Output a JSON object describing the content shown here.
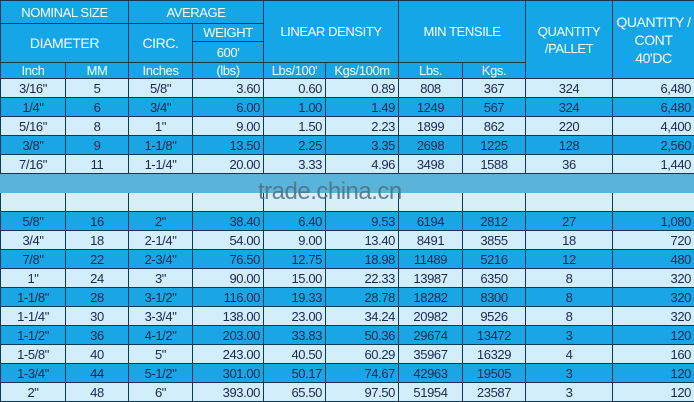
{
  "header": {
    "nominal_size": "NOMINAL SIZE",
    "average": "AVERAGE",
    "diameter": "DIAMETER",
    "circ": "CIRC.",
    "weight": "WEIGHT",
    "weight_len": "600'",
    "linear_density": "LINEAR DENSITY",
    "min_tensile": "MIN TENSILE",
    "qty_pallet": "QUANTITY /PALLET",
    "qty_cont": "QUANTITY / CONT 40'DC",
    "units": [
      "Inch",
      "MM",
      "Inches",
      "(lbs)",
      "Lbs/100'",
      "Kgs/100m",
      "Lbs.",
      "Kgs."
    ]
  },
  "rows_top": [
    [
      "3/16\"",
      "5",
      "5/8\"",
      "3.60",
      "0.60",
      "0.89",
      "808",
      "367",
      "324",
      "6,480"
    ],
    [
      "1/4\"",
      "6",
      "3/4\"",
      "6.00",
      "1.00",
      "1.49",
      "1249",
      "567",
      "324",
      "6,480"
    ],
    [
      "5/16\"",
      "8",
      "1\"",
      "9.00",
      "1.50",
      "2.23",
      "1899",
      "862",
      "220",
      "4,400"
    ],
    [
      "3/8\"",
      "9",
      "1-1/8\"",
      "13.50",
      "2.25",
      "3.35",
      "2698",
      "1225",
      "128",
      "2,560"
    ],
    [
      "7/16\"",
      "11",
      "1-1/4\"",
      "20.00",
      "3.33",
      "4.96",
      "3498",
      "1588",
      "36",
      "1,440"
    ]
  ],
  "rows_bottom": [
    [
      "5/8\"",
      "16",
      "2\"",
      "38.40",
      "6.40",
      "9.53",
      "6194",
      "2812",
      "27",
      "1,080"
    ],
    [
      "3/4\"",
      "18",
      "2-1/4\"",
      "54.00",
      "9.00",
      "13.40",
      "8491",
      "3855",
      "18",
      "720"
    ],
    [
      "7/8\"",
      "22",
      "2-3/4\"",
      "76.50",
      "12.75",
      "18.98",
      "11489",
      "5216",
      "12",
      "480"
    ],
    [
      "1\"",
      "24",
      "3\"",
      "90.00",
      "15.00",
      "22.33",
      "13987",
      "6350",
      "8",
      "320"
    ],
    [
      "1-1/8\"",
      "28",
      "3-1/2\"",
      "116.00",
      "19.33",
      "28.78",
      "18282",
      "8300",
      "8",
      "320"
    ],
    [
      "1-1/4\"",
      "30",
      "3-3/4\"",
      "138.00",
      "23.00",
      "34.24",
      "20982",
      "9526",
      "8",
      "320"
    ],
    [
      "1-1/2\"",
      "36",
      "4-1/2\"",
      "203.00",
      "33.83",
      "50.36",
      "29674",
      "13472",
      "3",
      "120"
    ],
    [
      "1-5/8\"",
      "40",
      "5\"",
      "243.00",
      "40.50",
      "60.29",
      "35967",
      "16329",
      "4",
      "160"
    ],
    [
      "1-3/4\"",
      "44",
      "5-1/2\"",
      "301.00",
      "50.17",
      "74.67",
      "42963",
      "19505",
      "3",
      "120"
    ],
    [
      "2\"",
      "48",
      "6\"",
      "393.00",
      "65.50",
      "97.50",
      "51954",
      "23587",
      "3",
      "120"
    ]
  ],
  "watermark": "trade.china.cn",
  "colors": {
    "header": "#14a6e6",
    "row_light": "#d3eefb",
    "row_blue": "#1aa6e4",
    "text": "#1b2950"
  }
}
